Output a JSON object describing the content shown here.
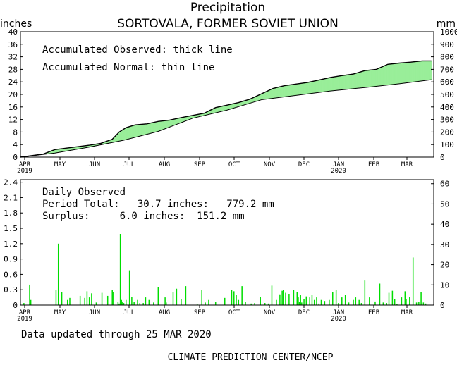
{
  "page": {
    "title": "Precipitation",
    "subtitle": "SORTOVALA, FORMER SOVIET UNION",
    "units_left": "inches",
    "units_right": "mm",
    "data_updated": "Data updated through 25 MAR 2020",
    "credit": "CLIMATE PREDICTION CENTER/NCEP"
  },
  "colors": {
    "surplus_fill": "#99ee99",
    "deficit_fill": "#ee9999",
    "daily_bar": "#00dd00",
    "line": "#000000"
  },
  "chart_data": [
    {
      "type": "area",
      "legend": [
        "Accumulated Observed: thick line",
        "Accumulated Normal: thin line"
      ],
      "x_axis": {
        "tick_labels": [
          "APR",
          "MAY",
          "JUN",
          "JUL",
          "AUG",
          "SEP",
          "OCT",
          "NOV",
          "DEC",
          "JAN",
          "FEB",
          "MAR"
        ],
        "year_labels": [
          "2019",
          "2020"
        ],
        "range_days": [
          0,
          360
        ]
      },
      "y_axis_left": {
        "ylim": [
          0,
          40
        ],
        "ticks": [
          0,
          4,
          8,
          12,
          16,
          20,
          24,
          28,
          32,
          36,
          40
        ]
      },
      "y_axis_right": {
        "ylim": [
          0,
          1000
        ],
        "ticks": [
          0,
          100,
          200,
          300,
          400,
          500,
          600,
          700,
          800,
          900,
          1000
        ]
      },
      "grid": false,
      "x_unit": "day from 1 APR 2019",
      "series": [
        {
          "name": "Accumulated Observed",
          "x": [
            0,
            10,
            20,
            30,
            45,
            60,
            70,
            80,
            86,
            92,
            100,
            110,
            120,
            130,
            140,
            150,
            160,
            170,
            180,
            190,
            200,
            210,
            220,
            230,
            240,
            250,
            260,
            270,
            280,
            290,
            300,
            310,
            320,
            330,
            340,
            350,
            358
          ],
          "values": [
            0.0,
            0.5,
            1.0,
            2.4,
            3.1,
            3.8,
            4.4,
            5.7,
            8.0,
            9.4,
            10.3,
            10.6,
            11.4,
            11.8,
            12.6,
            13.3,
            14.0,
            15.8,
            16.6,
            17.4,
            18.5,
            20.2,
            21.9,
            22.8,
            23.3,
            23.8,
            24.6,
            25.4,
            26.0,
            26.5,
            27.6,
            28.0,
            29.6,
            30.0,
            30.3,
            30.7,
            30.7
          ]
        },
        {
          "name": "Accumulated Normal",
          "x": [
            0,
            30,
            60,
            90,
            120,
            150,
            180,
            210,
            240,
            270,
            300,
            330,
            358
          ],
          "values": [
            0.0,
            1.3,
            3.2,
            5.4,
            8.2,
            12.4,
            15.0,
            18.3,
            19.7,
            21.1,
            22.2,
            23.4,
            24.7
          ]
        }
      ]
    },
    {
      "type": "bar",
      "legend": [
        "Daily Observed",
        "Period Total:   30.7 inches:   779.2 mm",
        "Surplus:     6.0 inches:  151.2 mm"
      ],
      "x_axis": {
        "tick_labels": [
          "APR",
          "MAY",
          "JUN",
          "JUL",
          "AUG",
          "SEP",
          "OCT",
          "NOV",
          "DEC",
          "JAN",
          "FEB",
          "MAR"
        ],
        "year_labels": [
          "2019",
          "2020"
        ],
        "range_days": [
          0,
          360
        ]
      },
      "y_axis_left": {
        "ylim": [
          0,
          2.45
        ],
        "ticks": [
          "0",
          "0.3",
          "0.6",
          "0.9",
          "1.2",
          "1.5",
          "1.8",
          "2.1",
          "2.4"
        ]
      },
      "y_axis_right": {
        "ylim": [
          0,
          62
        ],
        "ticks": [
          "0",
          "10",
          "20",
          "30",
          "40",
          "50",
          "60"
        ]
      },
      "x_unit": "day from 1 APR 2019",
      "series": [
        {
          "name": "Daily Observed",
          "x": [
            3,
            8,
            9,
            31,
            33,
            36,
            41,
            43,
            52,
            56,
            58,
            60,
            62,
            66,
            71,
            76,
            80,
            81,
            85,
            86,
            87,
            88,
            89,
            90,
            92,
            95,
            97,
            99,
            102,
            104,
            107,
            109,
            112,
            116,
            120,
            126,
            127,
            133,
            136,
            140,
            144,
            154,
            158,
            161,
            164,
            170,
            178,
            184,
            186,
            188,
            190,
            193,
            196,
            201,
            204,
            209,
            213,
            216,
            219,
            223,
            226,
            228,
            229,
            231,
            234,
            238,
            241,
            242,
            243,
            244,
            245,
            247,
            249,
            252,
            254,
            256,
            258,
            260,
            262,
            265,
            269,
            272,
            275,
            277,
            280,
            283,
            286,
            290,
            292,
            295,
            297,
            300,
            304,
            309,
            313,
            316,
            319,
            321,
            324,
            326,
            328,
            332,
            335,
            336,
            339,
            342,
            345,
            347,
            349,
            351,
            353
          ],
          "values": [
            0.04,
            0.4,
            0.1,
            0.3,
            1.2,
            0.26,
            0.1,
            0.14,
            0.18,
            0.14,
            0.27,
            0.15,
            0.23,
            0.05,
            0.24,
            0.18,
            0.3,
            0.26,
            0.06,
            0.03,
            1.39,
            0.1,
            0.07,
            0.04,
            0.1,
            0.68,
            0.16,
            0.06,
            0.1,
            0.04,
            0.04,
            0.15,
            0.1,
            0.05,
            0.35,
            0.15,
            0.05,
            0.26,
            0.32,
            0.12,
            0.37,
            0.02,
            0.3,
            0.05,
            0.1,
            0.06,
            0.14,
            0.3,
            0.27,
            0.2,
            0.1,
            0.37,
            0.06,
            0.03,
            0.04,
            0.16,
            0.04,
            0.03,
            0.38,
            0.1,
            0.21,
            0.28,
            0.3,
            0.24,
            0.22,
            0.3,
            0.25,
            0.15,
            0.06,
            0.2,
            0.05,
            0.12,
            0.17,
            0.15,
            0.2,
            0.1,
            0.15,
            0.03,
            0.1,
            0.08,
            0.1,
            0.25,
            0.3,
            0.04,
            0.15,
            0.2,
            0.05,
            0.1,
            0.15,
            0.1,
            0.04,
            0.48,
            0.15,
            0.07,
            0.42,
            0.05,
            0.04,
            0.24,
            0.28,
            0.12,
            0.02,
            0.15,
            0.27,
            0.12,
            0.16,
            0.93,
            0.05,
            0.06,
            0.26,
            0.05,
            0.03
          ]
        }
      ]
    }
  ]
}
